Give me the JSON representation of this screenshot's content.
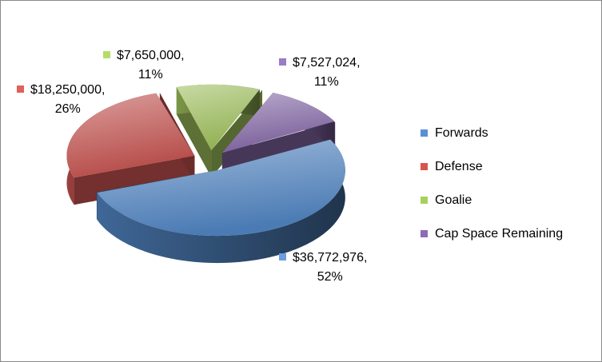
{
  "chart_data": {
    "type": "pie",
    "style": "3d-exploded",
    "title": "",
    "categories": [
      "Forwards",
      "Defense",
      "Goalie",
      "Cap Space Remaining"
    ],
    "values": [
      36772976,
      18250000,
      7650000,
      7527024
    ],
    "data_labels": [
      {
        "value": "$36,772,976,",
        "percent": "52%"
      },
      {
        "value": "$18,250,000,",
        "percent": "26%"
      },
      {
        "value": "$7,650,000,",
        "percent": "11%"
      },
      {
        "value": "$7,527,024,",
        "percent": "11%"
      }
    ],
    "colors": [
      "#4F81BD",
      "#C0504D",
      "#9BBB59",
      "#8064A2"
    ],
    "legend_position": "right"
  }
}
